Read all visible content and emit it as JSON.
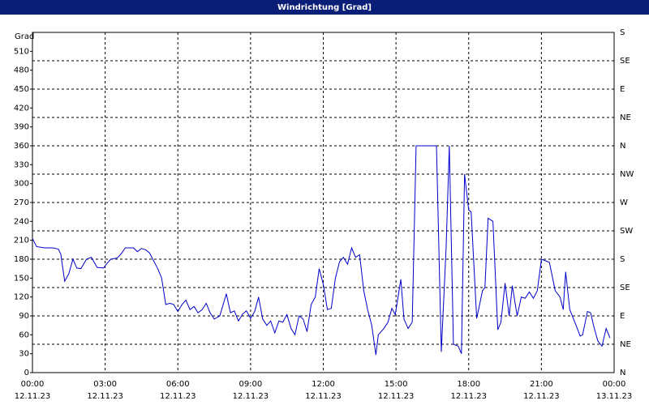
{
  "chart_data": {
    "type": "line",
    "title": "Windrichtung [Grad]",
    "y_label": "Grad",
    "ylim": [
      0,
      540
    ],
    "yticks": [
      0,
      30,
      60,
      90,
      120,
      150,
      180,
      210,
      240,
      270,
      300,
      330,
      360,
      390,
      420,
      450,
      480,
      510
    ],
    "y2lim": [
      0,
      540
    ],
    "y2ticks": [
      {
        "value": 0,
        "label": "N"
      },
      {
        "value": 45,
        "label": "NE"
      },
      {
        "value": 90,
        "label": "E"
      },
      {
        "value": 135,
        "label": "SE"
      },
      {
        "value": 180,
        "label": "S"
      },
      {
        "value": 225,
        "label": "SW"
      },
      {
        "value": 270,
        "label": "W"
      },
      {
        "value": 315,
        "label": "NW"
      },
      {
        "value": 360,
        "label": "N"
      },
      {
        "value": 405,
        "label": "NE"
      },
      {
        "value": 450,
        "label": "E"
      },
      {
        "value": 495,
        "label": "SE"
      },
      {
        "value": 540,
        "label": "S"
      }
    ],
    "xlim": [
      0,
      24
    ],
    "xticks": [
      {
        "value": 0,
        "label": "00:00",
        "date": "12.11.23"
      },
      {
        "value": 3,
        "label": "03:00",
        "date": "12.11.23"
      },
      {
        "value": 6,
        "label": "06:00",
        "date": "12.11.23"
      },
      {
        "value": 9,
        "label": "09:00",
        "date": "12.11.23"
      },
      {
        "value": 12,
        "label": "12:00",
        "date": "12.11.23"
      },
      {
        "value": 15,
        "label": "15:00",
        "date": "12.11.23"
      },
      {
        "value": 18,
        "label": "18:00",
        "date": "12.11.23"
      },
      {
        "value": 21,
        "label": "21:00",
        "date": "12.11.23"
      },
      {
        "value": 24,
        "label": "00:00",
        "date": "13.11.23"
      }
    ],
    "grid": true,
    "x": [
      0,
      0.17,
      0.5,
      0.83,
      1.07,
      1.17,
      1.33,
      1.5,
      1.67,
      1.83,
      2,
      2.23,
      2.43,
      2.67,
      2.93,
      3.07,
      3.23,
      3.5,
      3.67,
      3.83,
      4.17,
      4.33,
      4.5,
      4.67,
      4.83,
      5.17,
      5.33,
      5.5,
      5.67,
      5.83,
      6,
      6.17,
      6.33,
      6.5,
      6.67,
      6.83,
      7,
      7.17,
      7.33,
      7.5,
      7.73,
      8,
      8.17,
      8.33,
      8.5,
      8.67,
      8.83,
      9,
      9.17,
      9.33,
      9.5,
      9.67,
      9.83,
      10,
      10.17,
      10.33,
      10.5,
      10.67,
      10.83,
      11,
      11.17,
      11.33,
      11.5,
      11.67,
      11.83,
      12,
      12.17,
      12.33,
      12.5,
      12.67,
      12.83,
      13,
      13.17,
      13.33,
      13.5,
      13.67,
      13.83,
      14,
      14.17,
      14.27,
      14.5,
      14.67,
      14.83,
      14.97,
      15.2,
      15.33,
      15.5,
      15.67,
      15.83,
      16.67,
      16.87,
      17.07,
      17.2,
      17.37,
      17.57,
      17.7,
      17.83,
      18,
      18.1,
      18.33,
      18.57,
      18.67,
      18.8,
      19,
      19.2,
      19.33,
      19.5,
      19.67,
      19.8,
      20,
      20.17,
      20.33,
      20.5,
      20.67,
      20.83,
      21,
      21.33,
      21.57,
      21.77,
      21.9,
      22,
      22.17,
      22.4,
      22.6,
      22.7,
      22.9,
      23.03,
      23.17,
      23.33,
      23.5,
      23.67,
      23.83
    ],
    "series": [
      {
        "color": "#0000cc",
        "values": [
          213,
          200,
          198,
          198,
          196,
          188,
          145,
          157,
          180,
          166,
          165,
          180,
          183,
          167,
          166,
          173,
          180,
          182,
          189,
          198,
          198,
          192,
          197,
          195,
          190,
          165,
          150,
          108,
          110,
          108,
          97,
          108,
          115,
          100,
          105,
          95,
          100,
          110,
          95,
          85,
          90,
          125,
          95,
          98,
          82,
          93,
          98,
          86,
          97,
          120,
          85,
          75,
          82,
          63,
          82,
          80,
          92,
          70,
          60,
          90,
          85,
          65,
          108,
          120,
          165,
          140,
          100,
          102,
          150,
          176,
          183,
          172,
          198,
          183,
          187,
          130,
          100,
          75,
          28,
          60,
          70,
          80,
          102,
          92,
          148,
          85,
          70,
          80,
          360,
          360,
          33,
          200,
          360,
          45,
          42,
          30,
          315,
          258,
          255,
          86,
          130,
          135,
          245,
          240,
          68,
          80,
          142,
          90,
          138,
          90,
          120,
          118,
          128,
          118,
          130,
          180,
          175,
          130,
          120,
          100,
          160,
          100,
          78,
          58,
          60,
          97,
          95,
          72,
          50,
          42,
          70,
          55
        ]
      }
    ]
  }
}
